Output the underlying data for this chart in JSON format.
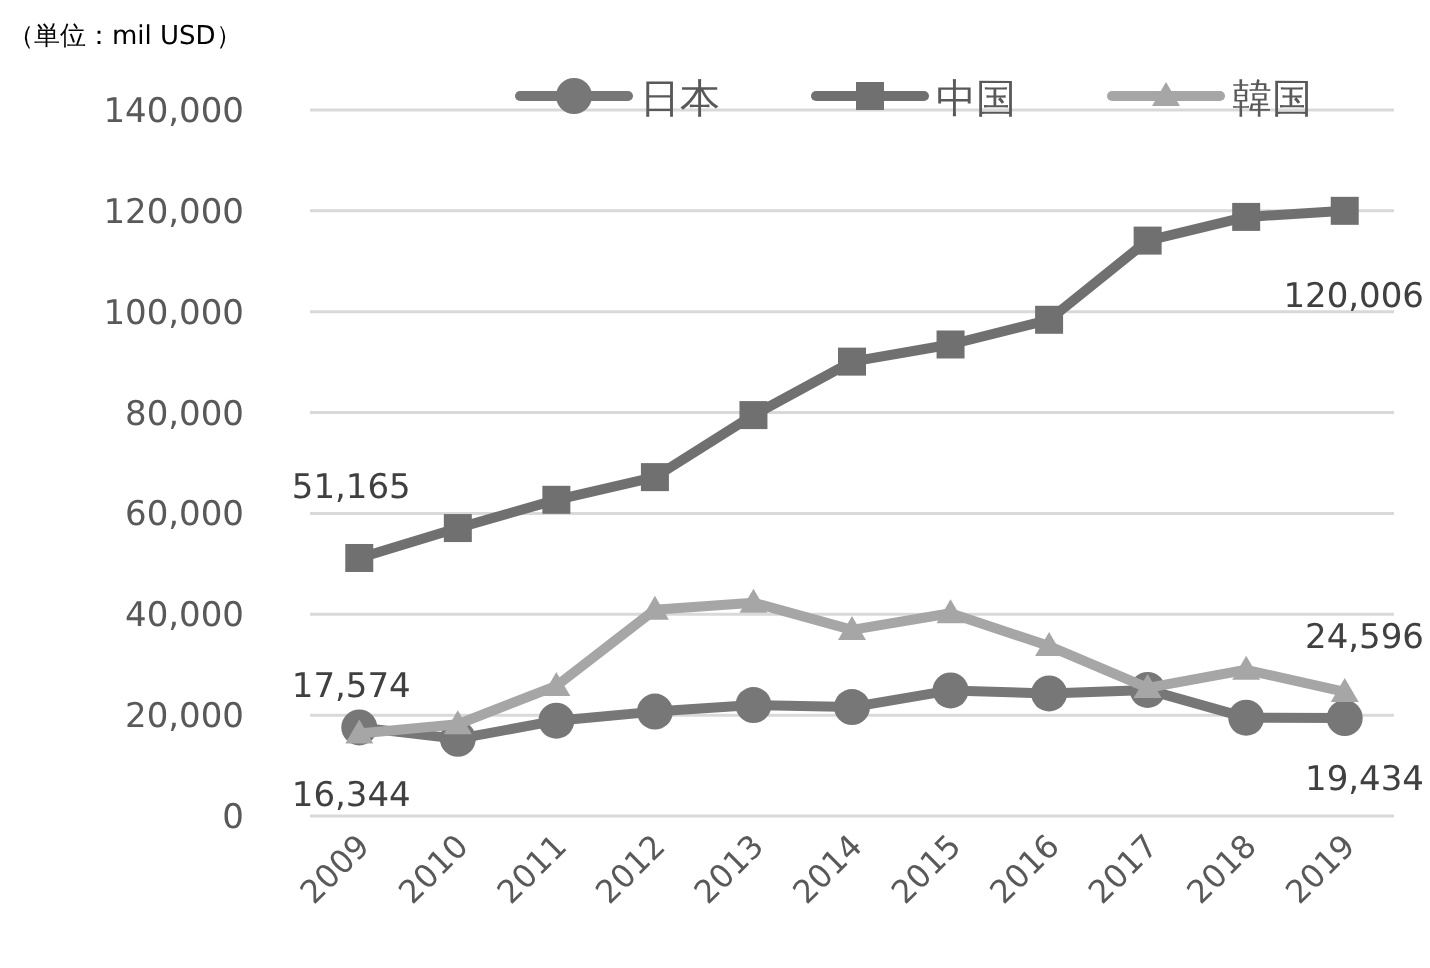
{
  "chart_data": {
    "type": "line",
    "ylabel": "（単位：mil USD）",
    "categories": [
      "2009",
      "2010",
      "2011",
      "2012",
      "2013",
      "2014",
      "2015",
      "2016",
      "2017",
      "2018",
      "2019"
    ],
    "series": [
      {
        "name": "日本",
        "color": "#777777",
        "marker": "circle",
        "values": [
          17574,
          15300,
          18900,
          20700,
          22000,
          21600,
          24900,
          24300,
          25000,
          19500,
          19434
        ],
        "value_labels": [
          "17,574",
          null,
          null,
          null,
          null,
          null,
          null,
          null,
          null,
          null,
          "19,434"
        ]
      },
      {
        "name": "中国",
        "color": "#707070",
        "marker": "square",
        "values": [
          51165,
          57100,
          62700,
          67200,
          79500,
          90100,
          93500,
          98400,
          114100,
          118800,
          120006
        ],
        "value_labels": [
          "51,165",
          null,
          null,
          null,
          null,
          null,
          null,
          null,
          null,
          null,
          "120,006"
        ]
      },
      {
        "name": "韓国",
        "color": "#a6a6a6",
        "marker": "triangle",
        "values": [
          16344,
          18200,
          25800,
          40900,
          42300,
          36900,
          40200,
          33700,
          25400,
          29000,
          24596
        ],
        "value_labels": [
          "16,344",
          null,
          null,
          null,
          null,
          null,
          null,
          null,
          null,
          null,
          "24,596"
        ]
      }
    ],
    "ylim": [
      0,
      140000
    ],
    "yticks": [
      {
        "value": 0,
        "label": "0"
      },
      {
        "value": 20000,
        "label": "20,000"
      },
      {
        "value": 40000,
        "label": "40,000"
      },
      {
        "value": 60000,
        "label": "60,000"
      },
      {
        "value": 80000,
        "label": "80,000"
      },
      {
        "value": 100000,
        "label": "100,000"
      },
      {
        "value": 120000,
        "label": "120,000"
      },
      {
        "value": 140000,
        "label": "140,000"
      }
    ],
    "grid": "y",
    "legend": "top",
    "line_style": "solid"
  }
}
